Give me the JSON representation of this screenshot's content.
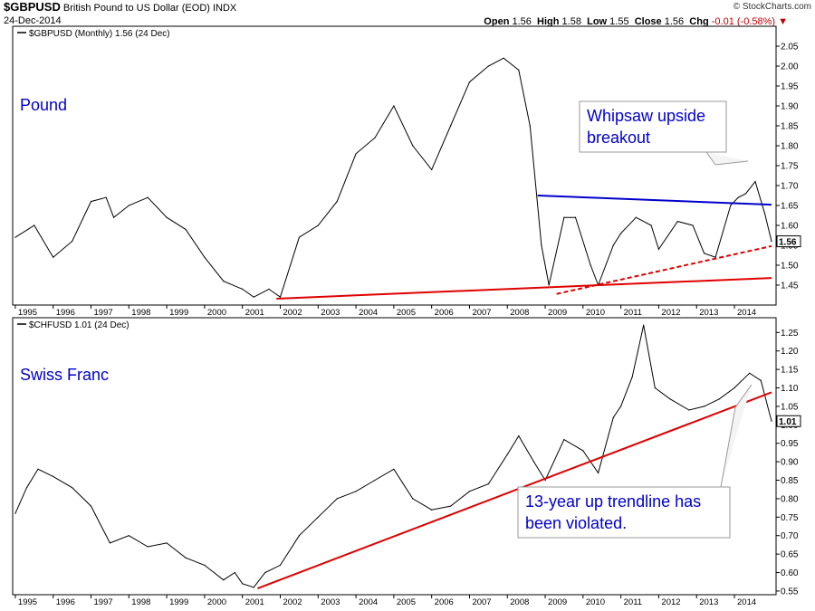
{
  "header": {
    "symbol": "$GBPUSD",
    "description": "British Pound to US Dollar (EOD)",
    "exchange": "INDX",
    "date": "24-Dec-2014",
    "brand": "© StockCharts.com",
    "quote": {
      "open_label": "Open",
      "open": "1.56",
      "high_label": "High",
      "high": "1.58",
      "low_label": "Low",
      "low": "1.55",
      "close_label": "Close",
      "close": "1.56",
      "chg_label": "Chg",
      "chg": "-0.01 (-0.58%)"
    }
  },
  "colors": {
    "price": "#000000",
    "support": "#e00000",
    "resistance": "#0000cc",
    "label": "#0000cc",
    "frame": "#000000"
  },
  "chart_data": [
    {
      "type": "line",
      "legend": "$GBPUSD (Monthly) 1.56 (24 Dec)",
      "label": "Pound",
      "last_value_label": "1.56",
      "ylim": [
        1.4,
        2.1
      ],
      "y_ticks": [
        "1.45",
        "1.50",
        "1.55",
        "1.60",
        "1.65",
        "1.70",
        "1.75",
        "1.80",
        "1.85",
        "1.90",
        "1.95",
        "2.00",
        "2.05"
      ],
      "x_ticks": [
        "1995",
        "1996",
        "1997",
        "1998",
        "1999",
        "2000",
        "2001",
        "2002",
        "2003",
        "2004",
        "2005",
        "2006",
        "2007",
        "2008",
        "2009",
        "2010",
        "2011",
        "2012",
        "2013",
        "2014"
      ],
      "x": [
        1995.0,
        1995.5,
        1996.0,
        1996.5,
        1997.0,
        1997.4,
        1997.6,
        1998.0,
        1998.5,
        1999.0,
        1999.5,
        2000.0,
        2000.5,
        2001.0,
        2001.3,
        2001.7,
        2002.0,
        2002.5,
        2003.0,
        2003.5,
        2004.0,
        2004.5,
        2005.0,
        2005.5,
        2006.0,
        2006.5,
        2007.0,
        2007.5,
        2007.9,
        2008.3,
        2008.6,
        2008.9,
        2009.1,
        2009.5,
        2009.8,
        2010.2,
        2010.4,
        2010.8,
        2011.0,
        2011.4,
        2011.8,
        2012.0,
        2012.5,
        2012.9,
        2013.2,
        2013.5,
        2013.9,
        2014.1,
        2014.3,
        2014.55,
        2014.8,
        2014.98
      ],
      "values": [
        1.57,
        1.6,
        1.52,
        1.56,
        1.66,
        1.67,
        1.62,
        1.65,
        1.67,
        1.62,
        1.59,
        1.52,
        1.46,
        1.44,
        1.42,
        1.44,
        1.42,
        1.57,
        1.6,
        1.66,
        1.78,
        1.82,
        1.9,
        1.8,
        1.74,
        1.85,
        1.96,
        2.0,
        2.02,
        1.99,
        1.85,
        1.55,
        1.45,
        1.62,
        1.62,
        1.5,
        1.45,
        1.55,
        1.58,
        1.62,
        1.6,
        1.54,
        1.61,
        1.6,
        1.53,
        1.52,
        1.65,
        1.67,
        1.68,
        1.71,
        1.63,
        1.56
      ],
      "annotation": "Whipsaw upside breakout",
      "trendlines": [
        {
          "from": [
            2001.9,
            1.416
          ],
          "to": [
            2014.98,
            1.468
          ],
          "style": "solid",
          "color": "#e00000"
        },
        {
          "from": [
            2009.3,
            1.428
          ],
          "to": [
            2014.98,
            1.548
          ],
          "style": "dashed",
          "color": "#e00000"
        },
        {
          "from": [
            2008.8,
            1.675
          ],
          "to": [
            2014.98,
            1.652
          ],
          "style": "solid",
          "color": "#0000cc"
        }
      ]
    },
    {
      "type": "line",
      "legend": "$CHFUSD 1.01 (24 Dec)",
      "label": "Swiss Franc",
      "last_value_label": "1.01",
      "ylim": [
        0.54,
        1.29
      ],
      "y_ticks": [
        "0.55",
        "0.60",
        "0.65",
        "0.70",
        "0.75",
        "0.80",
        "0.85",
        "0.90",
        "0.95",
        "1.00",
        "1.05",
        "1.10",
        "1.15",
        "1.20",
        "1.25"
      ],
      "x_ticks": [
        "1995",
        "1996",
        "1997",
        "1998",
        "1999",
        "2000",
        "2001",
        "2002",
        "2003",
        "2004",
        "2005",
        "2006",
        "2007",
        "2008",
        "2009",
        "2010",
        "2011",
        "2012",
        "2013",
        "2014"
      ],
      "x": [
        1995.0,
        1995.3,
        1995.6,
        1996.0,
        1996.5,
        1997.0,
        1997.5,
        1998.0,
        1998.5,
        1999.0,
        1999.5,
        2000.0,
        2000.5,
        2000.8,
        2001.0,
        2001.3,
        2001.6,
        2002.0,
        2002.5,
        2003.0,
        2003.5,
        2004.0,
        2004.5,
        2005.0,
        2005.5,
        2006.0,
        2006.5,
        2007.0,
        2007.5,
        2008.0,
        2008.3,
        2008.7,
        2009.0,
        2009.5,
        2010.0,
        2010.4,
        2010.8,
        2011.0,
        2011.3,
        2011.6,
        2011.9,
        2012.3,
        2012.8,
        2013.2,
        2013.6,
        2014.0,
        2014.4,
        2014.7,
        2014.98
      ],
      "values": [
        0.76,
        0.83,
        0.88,
        0.86,
        0.83,
        0.78,
        0.68,
        0.7,
        0.67,
        0.68,
        0.64,
        0.62,
        0.58,
        0.6,
        0.57,
        0.56,
        0.6,
        0.62,
        0.7,
        0.75,
        0.8,
        0.82,
        0.85,
        0.88,
        0.8,
        0.77,
        0.78,
        0.82,
        0.84,
        0.92,
        0.97,
        0.9,
        0.85,
        0.96,
        0.93,
        0.87,
        1.02,
        1.05,
        1.13,
        1.27,
        1.1,
        1.07,
        1.04,
        1.05,
        1.07,
        1.1,
        1.14,
        1.12,
        1.01
      ],
      "annotation": "13-year up trendline has been violated.",
      "trendlines": [
        {
          "from": [
            2001.4,
            0.557
          ],
          "to": [
            2014.98,
            1.088
          ],
          "style": "solid",
          "color": "#e00000"
        }
      ]
    }
  ]
}
